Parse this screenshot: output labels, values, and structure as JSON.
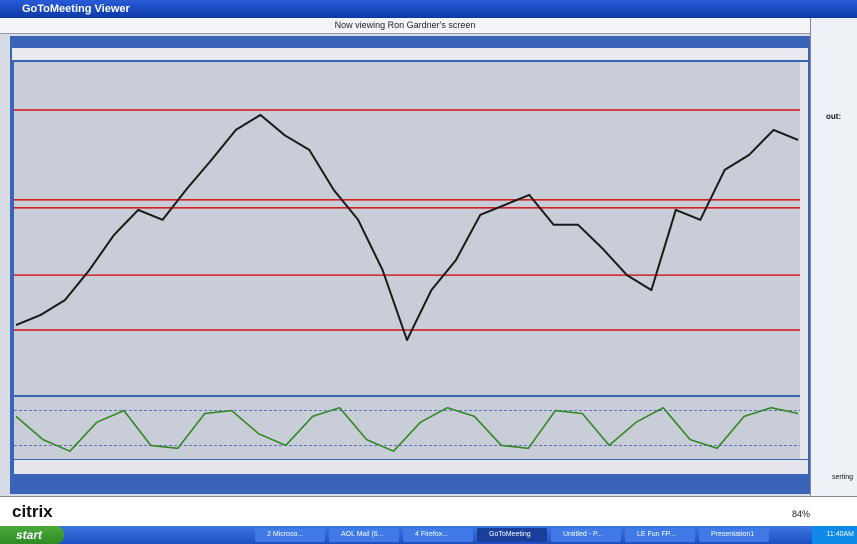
{
  "window": {
    "title": "GoToMeeting Viewer",
    "viewing": "Now viewing Ron Gardner's screen",
    "brand": "citrix",
    "zoom": "84%",
    "side_label": "out:",
    "side_label2": "serting"
  },
  "taskbar": {
    "start": "start",
    "items": [
      "2 Microso...",
      "AOL Mail (6...",
      "4 Firefox...",
      "GoToMeeting",
      "Untitled - P...",
      "LE Fun FP...",
      "Presentation1"
    ],
    "active": 3,
    "clock": "11:40AM"
  },
  "chart_data": [
    {
      "type": "line",
      "ylim": [
        0,
        100
      ],
      "series": [
        {
          "color": "#1a1a1a",
          "values": [
            21,
            24,
            28.5,
            37.5,
            48,
            55.6,
            52.6,
            62,
            70.6,
            79.6,
            84.1,
            78,
            73.6,
            61.6,
            52.6,
            37.5,
            16.5,
            31.5,
            40.5,
            54.1,
            57.1,
            60.1,
            51.1,
            51.1,
            44,
            36,
            31.5,
            55.6,
            52.6,
            67.6,
            72.1,
            79.6,
            76.6
          ]
        }
      ],
      "levels": {
        "color": "#d62020",
        "values": [
          85.6,
          58.6,
          56.2,
          36,
          19.5
        ]
      }
    },
    {
      "type": "line",
      "ylim": [
        0,
        100
      ],
      "series": [
        {
          "color": "#2f8a22",
          "values": [
            70,
            30,
            10,
            60,
            80,
            20,
            15,
            75,
            80,
            40,
            20,
            70,
            85,
            30,
            10,
            60,
            85,
            70,
            20,
            15,
            80,
            75,
            20,
            60,
            85,
            30,
            15,
            70,
            85,
            75
          ]
        }
      ],
      "levels": {
        "color": "#3a4fc0",
        "values": [
          80,
          20
        ]
      }
    }
  ]
}
